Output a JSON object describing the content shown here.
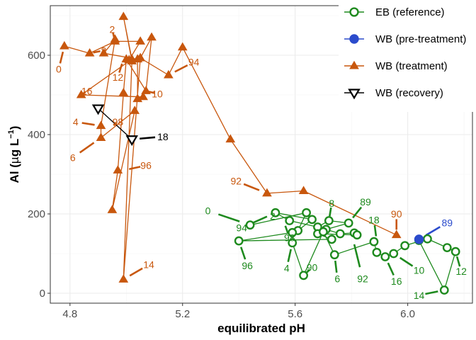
{
  "chart_data": {
    "type": "scatter",
    "xlabel": "equilibrated pH",
    "ylabel": {
      "main": "Al (",
      "mu": "µ",
      "unit": "g L",
      "sup": "−1",
      "close": ")"
    },
    "xlim": [
      4.73,
      6.23
    ],
    "ylim": [
      -25,
      725
    ],
    "x_ticks": [
      4.8,
      5.2,
      5.6,
      6.0
    ],
    "x_tick_labels": [
      "4.8",
      "5.2",
      "5.6",
      "6.0"
    ],
    "y_ticks": [
      0,
      200,
      400,
      600
    ],
    "y_tick_labels": [
      "0",
      "200",
      "400",
      "600"
    ],
    "grid": true,
    "legend_position": "top-right",
    "legend": [
      {
        "key": "eb",
        "label": "EB (reference)",
        "color": "#1e8a1e",
        "marker": "circle-open"
      },
      {
        "key": "wbpre",
        "label": "WB (pre-treatment)",
        "color": "#2b4bcc",
        "marker": "circle-filled"
      },
      {
        "key": "wbt",
        "label": "WB (treatment)",
        "color": "#c8570d",
        "marker": "triangle-up"
      },
      {
        "key": "wbr",
        "label": "WB (recovery)",
        "color": "#000000",
        "marker": "triangle-down-open"
      }
    ],
    "series": [
      {
        "name": "EB (reference)",
        "key": "eb",
        "color": "#1e8a1e",
        "points": [
          [
            5.44,
            172
          ],
          [
            5.64,
            203
          ],
          [
            5.61,
            158
          ],
          [
            5.66,
            186
          ],
          [
            5.53,
            203
          ],
          [
            5.58,
            183
          ],
          [
            5.68,
            167
          ],
          [
            5.72,
            183
          ],
          [
            5.79,
            177
          ],
          [
            5.71,
            161
          ],
          [
            5.76,
            150
          ],
          [
            5.81,
            152
          ],
          [
            5.82,
            147
          ],
          [
            5.68,
            150
          ],
          [
            5.73,
            136
          ],
          [
            5.4,
            132
          ],
          [
            5.59,
            153
          ],
          [
            5.59,
            127
          ],
          [
            5.63,
            45
          ],
          [
            5.7,
            155
          ],
          [
            5.74,
            97
          ],
          [
            5.88,
            130
          ],
          [
            5.89,
            103
          ],
          [
            5.92,
            92
          ],
          [
            5.95,
            100
          ],
          [
            5.99,
            120
          ],
          [
            6.07,
            137
          ],
          [
            6.14,
            115
          ],
          [
            6.17,
            105
          ],
          [
            6.13,
            8
          ],
          [
            6.04,
            133
          ]
        ],
        "labels": [
          {
            "text": "0",
            "pt": [
              5.44,
              172
            ],
            "at": [
              5.29,
              208
            ]
          },
          {
            "text": "94",
            "pt": [
              5.53,
              203
            ],
            "at": [
              5.41,
              165
            ]
          },
          {
            "text": "2",
            "pt": [
              5.53,
              203
            ],
            "at": [
              5.52,
              195
            ]
          },
          {
            "text": "98",
            "pt": [
              5.56,
              180
            ],
            "at": [
              5.58,
              140
            ]
          },
          {
            "text": "96",
            "pt": [
              5.4,
              132
            ],
            "at": [
              5.43,
              70
            ]
          },
          {
            "text": "4",
            "pt": [
              5.59,
              127
            ],
            "at": [
              5.57,
              63
            ]
          },
          {
            "text": "90",
            "pt": [
              5.63,
              45
            ],
            "at": [
              5.66,
              65
            ]
          },
          {
            "text": "6",
            "pt": [
              5.74,
              97
            ],
            "at": [
              5.75,
              37
            ]
          },
          {
            "text": "92",
            "pt": [
              5.8,
              152
            ],
            "at": [
              5.84,
              37
            ]
          },
          {
            "text": "8",
            "pt": [
              5.72,
              183
            ],
            "at": [
              5.73,
              227
            ]
          },
          {
            "text": "89",
            "pt": [
              5.79,
              177
            ],
            "at": [
              5.85,
              230
            ]
          },
          {
            "text": "18",
            "pt": [
              5.89,
              130
            ],
            "at": [
              5.88,
              185
            ]
          },
          {
            "text": "16",
            "pt": [
              5.92,
              92
            ],
            "at": [
              5.96,
              30
            ]
          },
          {
            "text": "10",
            "pt": [
              5.95,
              100
            ],
            "at": [
              6.04,
              58
            ]
          },
          {
            "text": "12",
            "pt": [
              6.17,
              105
            ],
            "at": [
              6.19,
              55
            ]
          },
          {
            "text": "14",
            "pt": [
              6.13,
              8
            ],
            "at": [
              6.04,
              -5
            ]
          }
        ]
      },
      {
        "name": "WB (pre-treatment)",
        "key": "wbpre",
        "color": "#2b4bcc",
        "points": [
          [
            6.04,
            136
          ]
        ],
        "labels": [
          {
            "text": "89",
            "pt": [
              6.04,
              136
            ],
            "at": [
              6.14,
              178
            ]
          }
        ]
      },
      {
        "name": "WB (treatment)",
        "key": "wbt",
        "color": "#c8570d",
        "points": [
          [
            4.78,
            623
          ],
          [
            4.87,
            605
          ],
          [
            4.96,
            635
          ],
          [
            5.05,
            635
          ],
          [
            5.01,
            588
          ],
          [
            5.05,
            593
          ],
          [
            5.09,
            645
          ],
          [
            5.07,
            510
          ],
          [
            5.0,
            590
          ],
          [
            4.99,
            505
          ],
          [
            4.97,
            310
          ],
          [
            4.95,
            210
          ],
          [
            5.03,
            460
          ],
          [
            4.91,
            392
          ],
          [
            4.91,
            422
          ],
          [
            4.96,
            640
          ],
          [
            4.92,
            605
          ],
          [
            5.04,
            590
          ],
          [
            5.04,
            490
          ],
          [
            5.06,
            495
          ],
          [
            4.84,
            500
          ],
          [
            5.02,
            590
          ],
          [
            4.99,
            697
          ],
          [
            5.02,
            585
          ],
          [
            4.99,
            35
          ],
          [
            5.05,
            593
          ],
          [
            5.15,
            550
          ],
          [
            5.2,
            620
          ],
          [
            5.37,
            388
          ],
          [
            5.5,
            252
          ],
          [
            5.63,
            258
          ],
          [
            5.96,
            147
          ]
        ],
        "labels": [
          {
            "text": "0",
            "pt": [
              4.78,
              623
            ],
            "at": [
              4.76,
              565
            ]
          },
          {
            "text": "8",
            "pt": [
              4.87,
              605
            ],
            "at": [
              4.92,
              612
            ]
          },
          {
            "text": "2",
            "pt": [
              4.96,
              635
            ],
            "at": [
              4.95,
              665
            ]
          },
          {
            "text": "12",
            "pt": [
              4.99,
              590
            ],
            "at": [
              4.97,
              545
            ]
          },
          {
            "text": "16",
            "pt": [
              4.84,
              500
            ],
            "at": [
              4.86,
              510
            ]
          },
          {
            "text": "10",
            "pt": [
              5.07,
              510
            ],
            "at": [
              5.11,
              503
            ]
          },
          {
            "text": "94",
            "pt": [
              5.15,
              550
            ],
            "at": [
              5.24,
              583
            ]
          },
          {
            "text": "4",
            "pt": [
              4.91,
              422
            ],
            "at": [
              4.82,
              432
            ]
          },
          {
            "text": "98",
            "pt": [
              4.95,
              420
            ],
            "at": [
              4.97,
              432
            ]
          },
          {
            "text": "6",
            "pt": [
              4.91,
              392
            ],
            "at": [
              4.81,
              342
            ]
          },
          {
            "text": "96",
            "pt": [
              4.99,
              310
            ],
            "at": [
              5.07,
              322
            ]
          },
          {
            "text": "92",
            "pt": [
              5.5,
              252
            ],
            "at": [
              5.39,
              283
            ]
          },
          {
            "text": "14",
            "pt": [
              4.99,
              35
            ],
            "at": [
              5.08,
              72
            ]
          },
          {
            "text": "90",
            "pt": [
              5.96,
              147
            ],
            "at": [
              5.96,
              200
            ]
          }
        ]
      },
      {
        "name": "WB (recovery)",
        "key": "wbr",
        "color": "#000000",
        "points": [
          [
            4.9,
            466
          ],
          [
            5.02,
            388
          ]
        ],
        "labels": [
          {
            "text": "18",
            "pt": [
              5.02,
              388
            ],
            "at": [
              5.13,
              395
            ]
          }
        ]
      }
    ]
  }
}
